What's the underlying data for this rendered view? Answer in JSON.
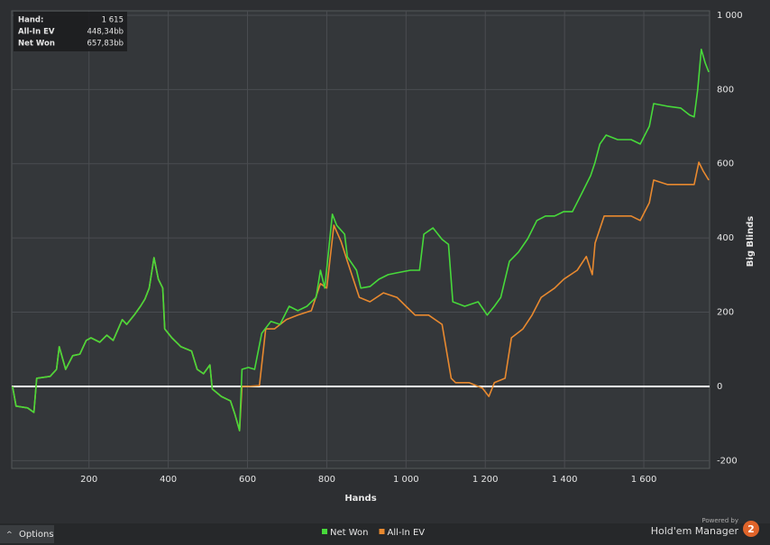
{
  "chart_data": {
    "type": "line",
    "x_label": "Hands",
    "y_label": "Big Blinds",
    "xlim": [
      5,
      1766
    ],
    "ylim": [
      -221,
      1012
    ],
    "xticks": [
      200,
      400,
      600,
      800,
      {
        "value": 1000,
        "label": "1 000"
      },
      {
        "value": 1200,
        "label": "1 200"
      },
      {
        "value": 1400,
        "label": "1 400"
      },
      {
        "value": 1600,
        "label": "1 600"
      }
    ],
    "yticks": [
      -200,
      0,
      200,
      400,
      600,
      800,
      {
        "value": 1000,
        "label": "1 000"
      }
    ],
    "grid": true,
    "zero_line": true,
    "series": [
      {
        "name": "Net Won",
        "color": "#47d93a",
        "x": [
          7,
          16,
          45,
          61,
          68,
          102,
          118,
          125,
          141,
          159,
          177,
          193,
          205,
          227,
          245,
          261,
          284,
          295,
          314,
          330,
          341,
          352,
          364,
          375,
          386,
          391,
          409,
          432,
          459,
          473,
          489,
          505,
          511,
          534,
          557,
          568,
          580,
          586,
          602,
          618,
          636,
          659,
          682,
          705,
          727,
          750,
          773,
          784,
          795,
          814,
          825,
          845,
          852,
          875,
          886,
          909,
          932,
          955,
          977,
          1011,
          1034,
          1045,
          1068,
          1091,
          1107,
          1118,
          1148,
          1182,
          1205,
          1223,
          1239,
          1261,
          1284,
          1307,
          1330,
          1352,
          1375,
          1398,
          1420,
          1443,
          1466,
          1477,
          1489,
          1505,
          1534,
          1568,
          1591,
          1614,
          1625,
          1659,
          1693,
          1716,
          1727,
          1736,
          1745,
          1755,
          1764
        ],
        "values": [
          0,
          -53,
          -58,
          -70,
          22,
          27,
          46,
          107,
          46,
          83,
          87,
          124,
          131,
          119,
          138,
          124,
          180,
          167,
          192,
          216,
          235,
          265,
          347,
          289,
          265,
          155,
          131,
          107,
          95,
          46,
          34,
          58,
          -7,
          -27,
          -39,
          -75,
          -119,
          46,
          51,
          46,
          143,
          175,
          167,
          216,
          204,
          216,
          240,
          313,
          265,
          464,
          434,
          410,
          349,
          313,
          265,
          269,
          289,
          301,
          306,
          313,
          313,
          410,
          427,
          396,
          383,
          228,
          216,
          228,
          192,
          216,
          240,
          337,
          362,
          398,
          447,
          459,
          459,
          471,
          471,
          519,
          568,
          604,
          653,
          677,
          665,
          665,
          653,
          701,
          762,
          755,
          750,
          731,
          726,
          799,
          908,
          871,
          847
        ]
      },
      {
        "name": "All-In EV",
        "color": "#e8892f",
        "x": [
          7,
          16,
          45,
          61,
          68,
          102,
          118,
          125,
          141,
          159,
          177,
          193,
          205,
          227,
          245,
          261,
          284,
          295,
          314,
          330,
          341,
          352,
          364,
          375,
          386,
          391,
          409,
          432,
          459,
          473,
          489,
          505,
          511,
          534,
          557,
          568,
          580,
          586,
          602,
          630,
          646,
          668,
          698,
          727,
          761,
          784,
          800,
          818,
          836,
          852,
          882,
          909,
          943,
          977,
          1000,
          1023,
          1057,
          1091,
          1114,
          1125,
          1159,
          1193,
          1209,
          1223,
          1250,
          1266,
          1295,
          1318,
          1341,
          1375,
          1398,
          1432,
          1455,
          1470,
          1477,
          1500,
          1534,
          1568,
          1591,
          1614,
          1625,
          1659,
          1693,
          1727,
          1739,
          1750,
          1764
        ],
        "values": [
          0,
          -53,
          -58,
          -70,
          22,
          27,
          46,
          107,
          46,
          83,
          87,
          124,
          131,
          119,
          138,
          124,
          180,
          167,
          192,
          216,
          235,
          265,
          347,
          289,
          265,
          155,
          131,
          107,
          95,
          46,
          34,
          58,
          -7,
          -27,
          -39,
          -75,
          -119,
          0,
          0,
          2,
          155,
          155,
          180,
          192,
          204,
          277,
          265,
          434,
          391,
          337,
          240,
          228,
          252,
          240,
          216,
          192,
          192,
          167,
          22,
          10,
          10,
          -5,
          -27,
          10,
          22,
          131,
          155,
          192,
          240,
          265,
          289,
          313,
          350,
          301,
          386,
          459,
          459,
          459,
          447,
          495,
          556,
          544,
          544,
          544,
          604,
          580,
          556
        ]
      }
    ],
    "tooltip": {
      "rows": [
        [
          "Hand:",
          "1 615"
        ],
        [
          "All-In EV",
          "448,34bb"
        ],
        [
          "Net Won",
          "657,83bb"
        ]
      ]
    },
    "options_button": "Options",
    "branding": {
      "powered_by": "Powered by",
      "product": "Hold'em Manager",
      "logo": "2"
    }
  }
}
